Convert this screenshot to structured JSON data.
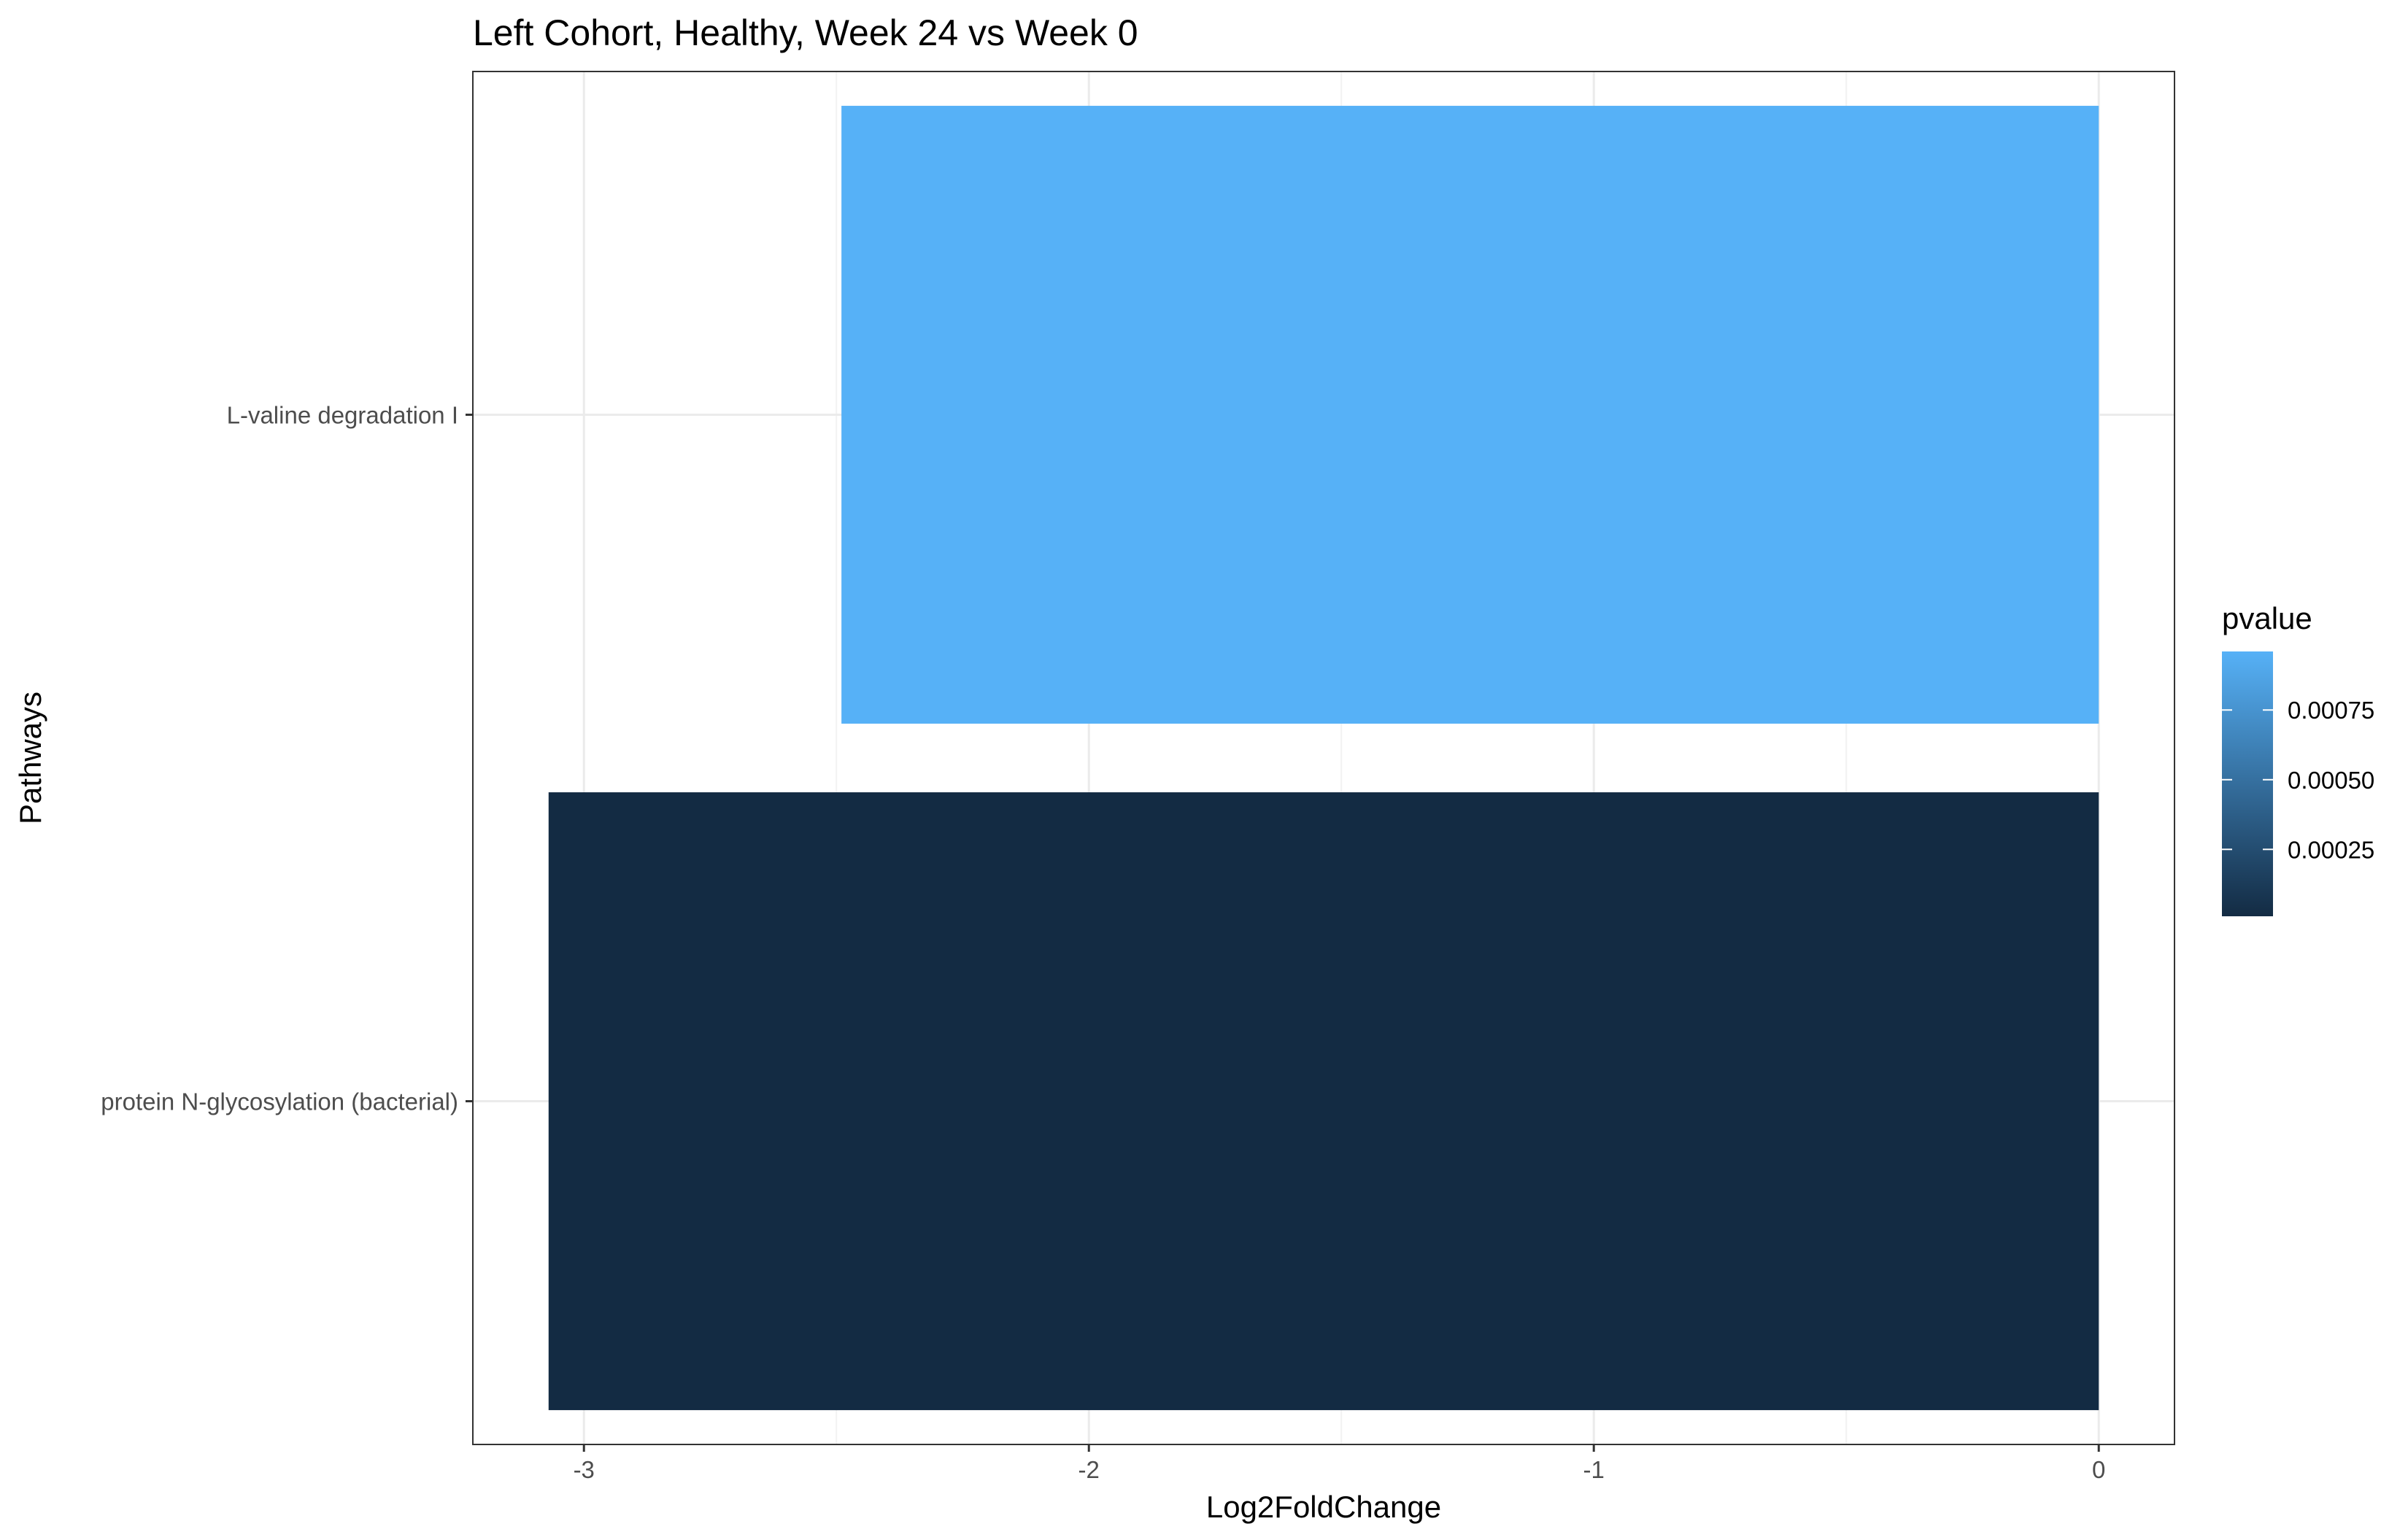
{
  "chart_data": {
    "type": "bar",
    "orientation": "horizontal",
    "title": "Left Cohort, Healthy, Week 24 vs Week 0",
    "xlabel": "Log2FoldChange",
    "ylabel": "Pathways",
    "xlim": [
      -3.22,
      0.15
    ],
    "x_ticks": [
      -3,
      -2,
      -1,
      0
    ],
    "x_tick_labels": [
      "-3",
      "-2",
      "-1",
      "0"
    ],
    "categories": [
      "L-valine degradation I",
      "protein N-glycosylation (bacterial)"
    ],
    "values": [
      -2.49,
      -3.07
    ],
    "pvalues": [
      0.00096,
      1e-05
    ],
    "grid": true,
    "legend": {
      "title": "pvalue",
      "placement": "right",
      "ticks": [
        0.00025,
        0.0005,
        0.00075
      ],
      "tick_labels": [
        "0.00025",
        "0.00050",
        "0.00075"
      ],
      "range": [
        1e-05,
        0.00096
      ],
      "color_low": "#132B43",
      "color_high": "#56B1F7"
    }
  }
}
